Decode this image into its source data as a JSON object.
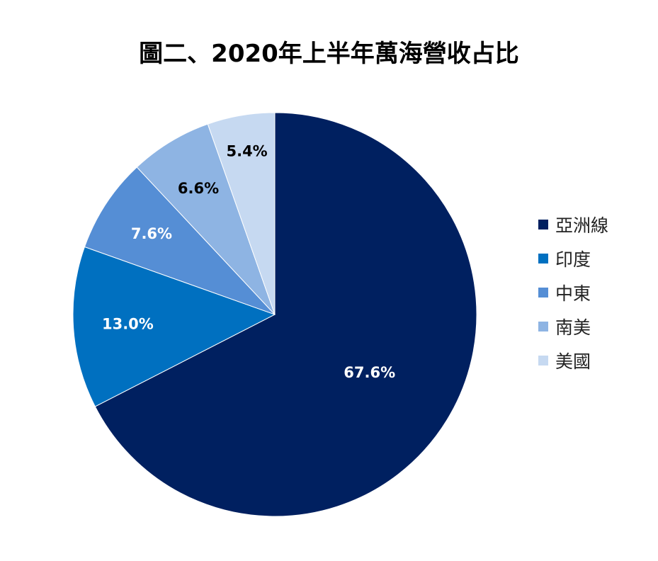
{
  "chart_data": {
    "type": "pie",
    "title": "圖二、2020年上半年萬海營收占比",
    "slices": [
      {
        "label": "亞洲線",
        "value": 67.6,
        "display": "67.6%",
        "color": "#002060",
        "label_color": "#ffffff"
      },
      {
        "label": "印度",
        "value": 13.0,
        "display": "13.0%",
        "color": "#0070c0",
        "label_color": "#ffffff"
      },
      {
        "label": "中東",
        "value": 7.6,
        "display": "7.6%",
        "color": "#558ed5",
        "label_color": "#ffffff"
      },
      {
        "label": "南美",
        "value": 6.6,
        "display": "6.6%",
        "color": "#8eb4e3",
        "label_color": "#000000"
      },
      {
        "label": "美國",
        "value": 5.4,
        "display": "5.4%",
        "color": "#c6d9f1",
        "label_color": "#000000"
      }
    ],
    "legend_position": "right",
    "start_angle": "12 o'clock",
    "direction": "clockwise"
  }
}
